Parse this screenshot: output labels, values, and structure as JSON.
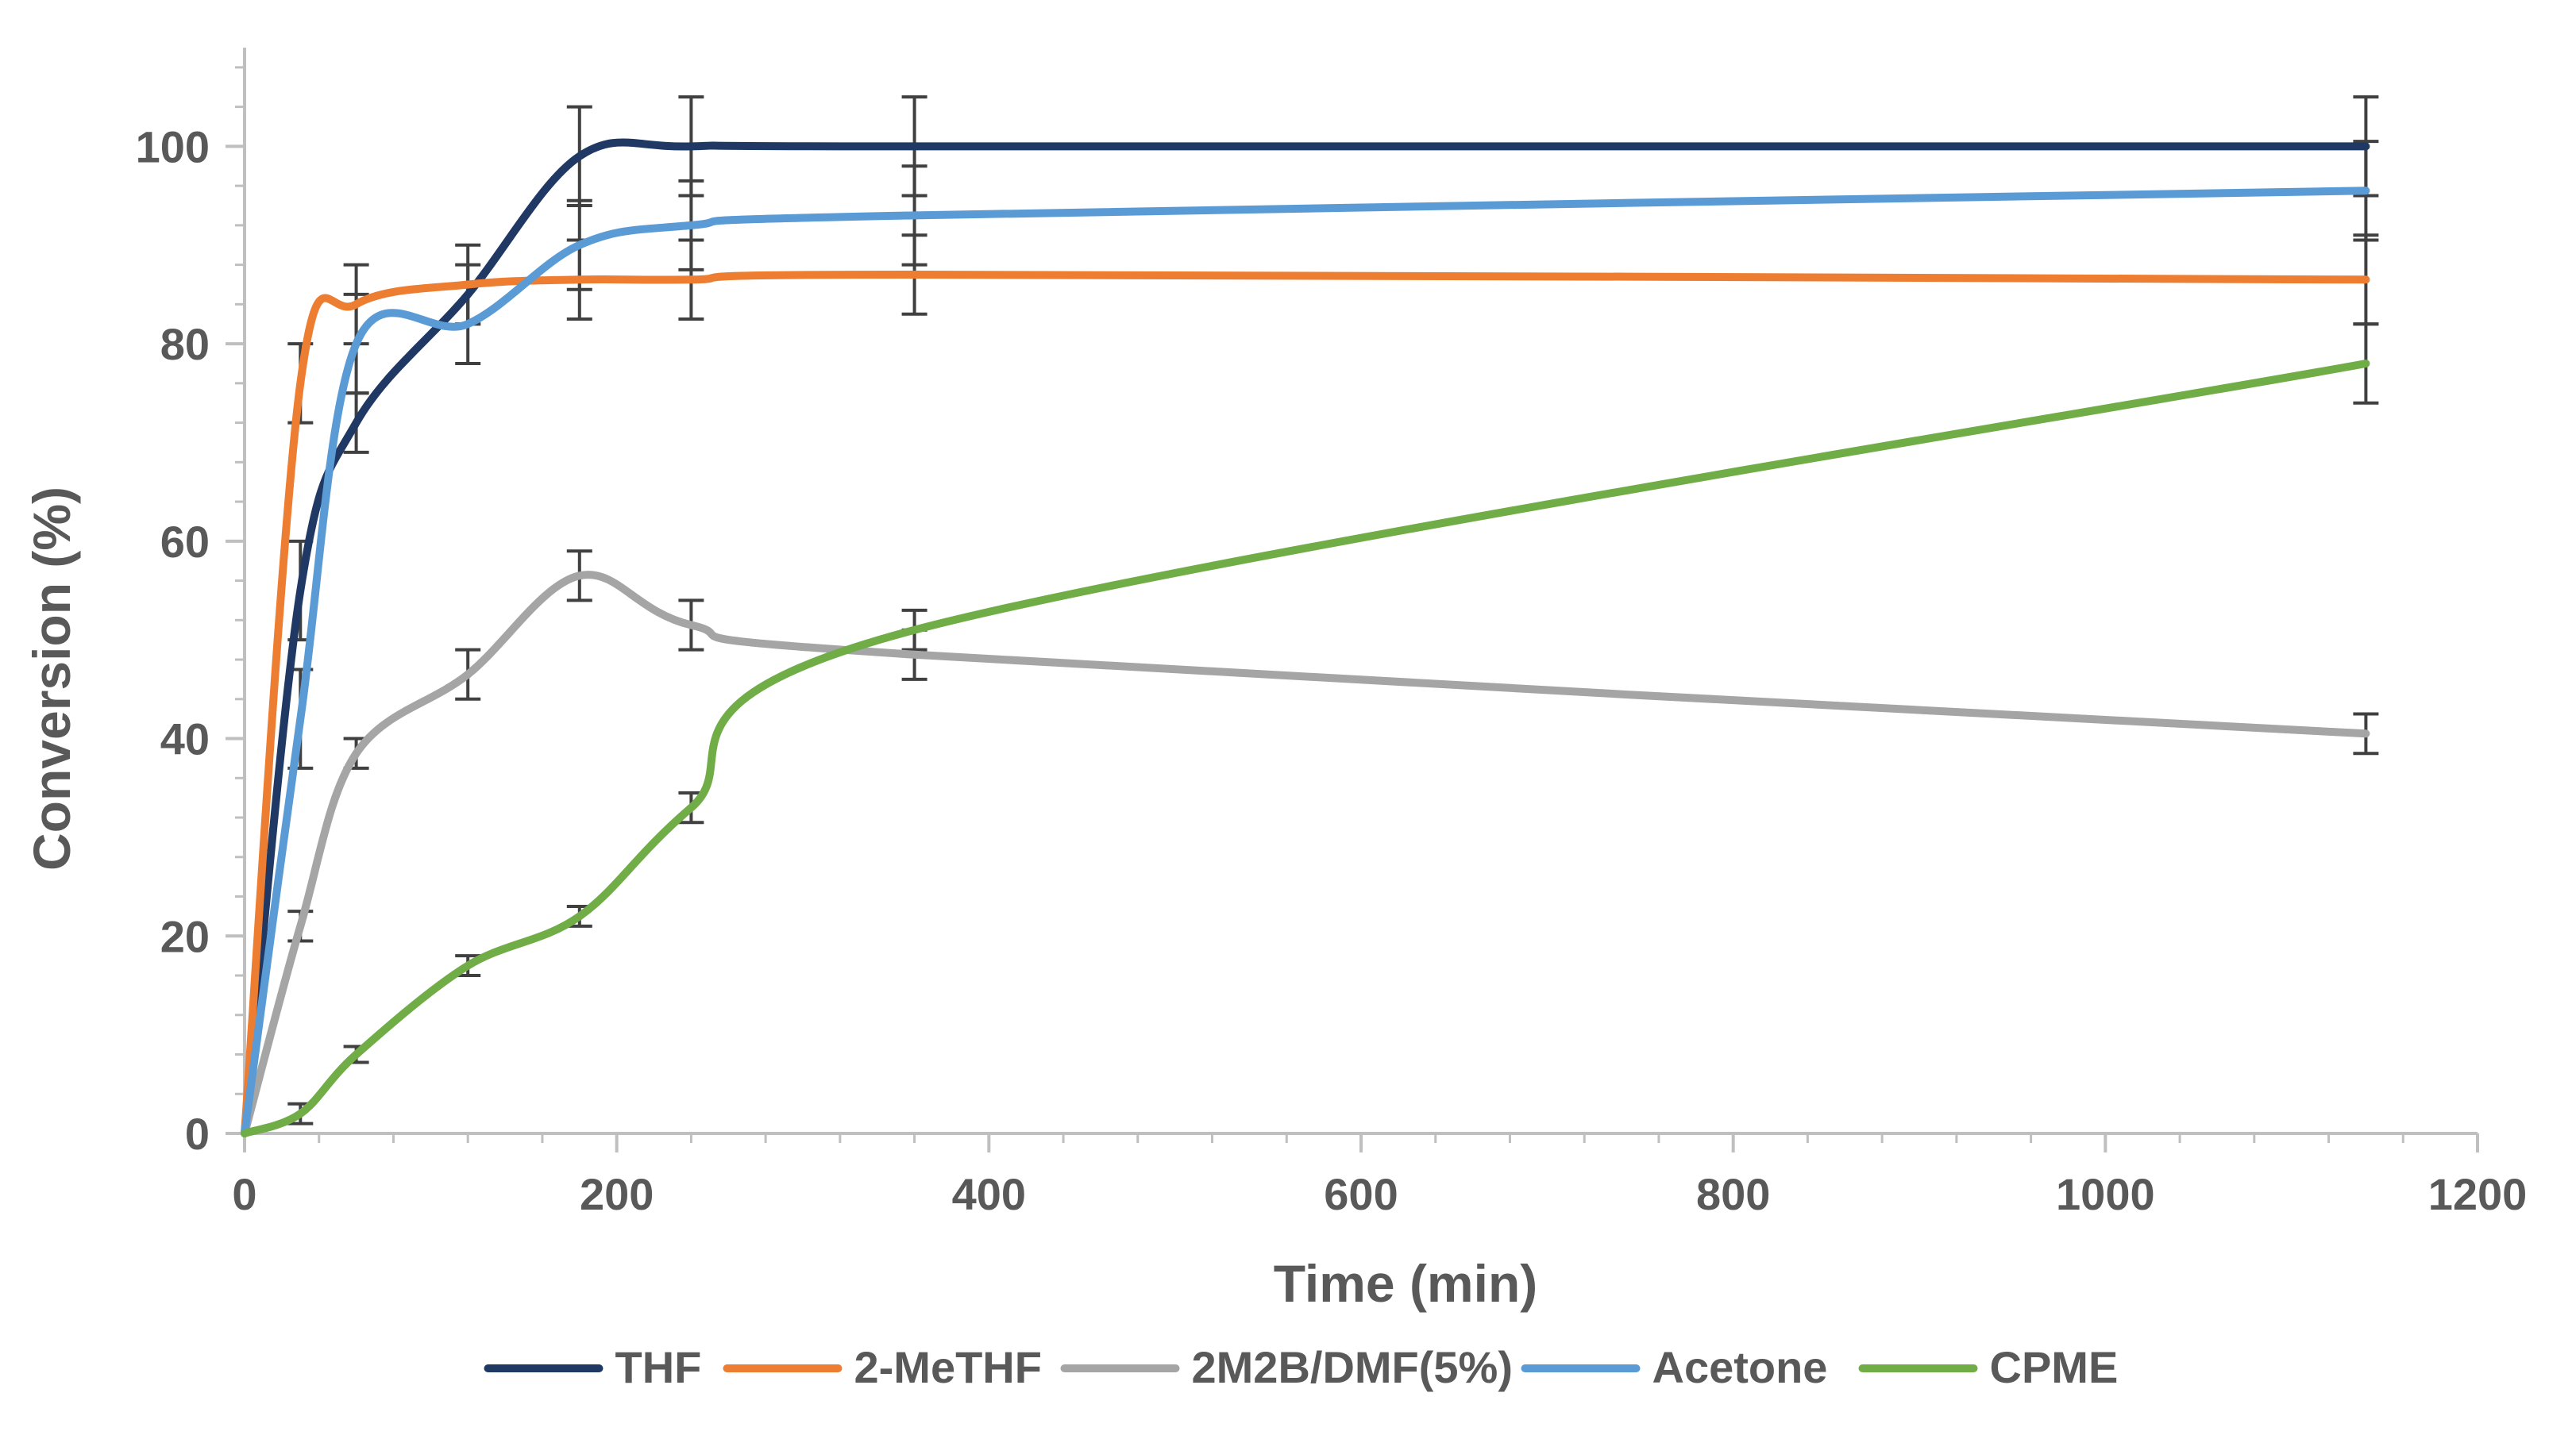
{
  "chart_data": {
    "type": "line",
    "title": "",
    "xlabel": "Time (min)",
    "ylabel": "Conversion (%)",
    "xlim": [
      0,
      1200
    ],
    "ylim": [
      0,
      110
    ],
    "x_ticks": [
      0,
      200,
      400,
      600,
      800,
      1000,
      1200
    ],
    "y_ticks": [
      0,
      20,
      40,
      60,
      80,
      100
    ],
    "x_tick_labels": [
      "0",
      "200",
      "400",
      "600",
      "800",
      "1000",
      "1200"
    ],
    "y_tick_labels": [
      "0",
      "20",
      "40",
      "60",
      "80",
      "100"
    ],
    "grid": false,
    "legend_position": "bottom",
    "series": [
      {
        "name": "THF",
        "color": "#203864",
        "x": [
          0,
          30,
          60,
          120,
          180,
          240,
          360,
          1140
        ],
        "y": [
          0,
          55,
          72,
          85,
          99,
          100,
          100,
          100
        ],
        "err": [
          0,
          5,
          3,
          3,
          5,
          5,
          5,
          5
        ]
      },
      {
        "name": "2-MeTHF",
        "color": "#ED7D31",
        "x": [
          0,
          30,
          60,
          120,
          180,
          240,
          360,
          1140
        ],
        "y": [
          0,
          76,
          84,
          86,
          86.5,
          86.5,
          87,
          86.5
        ],
        "err": [
          0,
          4,
          4,
          4,
          4,
          4,
          4,
          4.5
        ]
      },
      {
        "name": "2M2B/DMF(5%)",
        "color": "#A5A5A5",
        "x": [
          0,
          30,
          60,
          120,
          180,
          240,
          360,
          1140
        ],
        "y": [
          0,
          21,
          38.5,
          46.5,
          56.5,
          51.5,
          48.5,
          40.5
        ],
        "err": [
          0,
          1.5,
          1.5,
          2.5,
          2.5,
          2.5,
          2.5,
          2
        ]
      },
      {
        "name": "Acetone",
        "color": "#5B9BD5",
        "x": [
          0,
          30,
          60,
          120,
          180,
          240,
          360,
          1140
        ],
        "y": [
          0,
          42,
          80,
          82,
          90,
          92,
          93,
          95.5
        ],
        "err": [
          0,
          5,
          5,
          4,
          4.5,
          4.5,
          5,
          5
        ]
      },
      {
        "name": "CPME",
        "color": "#70AD47",
        "x": [
          0,
          30,
          60,
          120,
          180,
          240,
          360,
          1140
        ],
        "y": [
          0,
          2,
          8,
          17,
          22,
          33,
          51,
          78
        ],
        "err": [
          0,
          1,
          0.8,
          1,
          1,
          1.5,
          2,
          4
        ]
      }
    ]
  }
}
